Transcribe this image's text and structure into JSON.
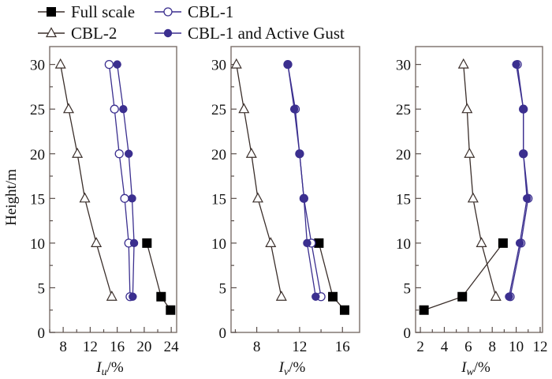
{
  "chart_data": [
    {
      "type": "line",
      "panel": "Iu",
      "xlabel_main": "I",
      "xlabel_sub": "u",
      "xlabel_suffix": "/%",
      "ylabel": "Height/m",
      "xlim": [
        6,
        24.8
      ],
      "ylim": [
        0,
        32
      ],
      "xticks": [
        8,
        12,
        16,
        20,
        24
      ],
      "xminor": 2,
      "yticks": [
        0,
        5,
        10,
        15,
        20,
        25,
        30
      ],
      "yminor": 2.5,
      "series": [
        {
          "name": "Full scale",
          "marker": "square-filled",
          "color": "#000000",
          "line": "#3a2e2a",
          "points": [
            [
              20.4,
              10
            ],
            [
              22.5,
              4
            ],
            [
              23.9,
              2.5
            ]
          ]
        },
        {
          "name": "CBL-2",
          "marker": "triangle-open",
          "color": "#3a2e2a",
          "line": "#3a2e2a",
          "points": [
            [
              7.6,
              30
            ],
            [
              8.8,
              25
            ],
            [
              10.1,
              20
            ],
            [
              11.2,
              15
            ],
            [
              12.9,
              10
            ],
            [
              15.2,
              4
            ]
          ]
        },
        {
          "name": "CBL-1",
          "marker": "circle-open",
          "color": "#3b2f8f",
          "line": "#3b2f8f",
          "points": [
            [
              14.8,
              30
            ],
            [
              15.6,
              25
            ],
            [
              16.3,
              20
            ],
            [
              17.1,
              15
            ],
            [
              17.7,
              10
            ],
            [
              17.9,
              4
            ]
          ]
        },
        {
          "name": "CBL-1 and Active Gust",
          "marker": "circle-filled",
          "color": "#3b2f8f",
          "line": "#3b2f8f",
          "points": [
            [
              16.0,
              30
            ],
            [
              16.9,
              25
            ],
            [
              17.7,
              20
            ],
            [
              18.2,
              15
            ],
            [
              18.5,
              10
            ],
            [
              18.3,
              4
            ]
          ]
        }
      ]
    },
    {
      "type": "line",
      "panel": "Iv",
      "xlabel_main": "I",
      "xlabel_sub": "v",
      "xlabel_suffix": "/%",
      "ylabel": "",
      "xlim": [
        5.6,
        17.6
      ],
      "ylim": [
        0,
        32
      ],
      "xticks": [
        8,
        12,
        16
      ],
      "xminor": 2,
      "yticks": [
        0,
        5,
        10,
        15,
        20,
        25,
        30
      ],
      "yminor": 2.5,
      "series": [
        {
          "name": "Full scale",
          "marker": "square-filled",
          "color": "#000000",
          "line": "#3a2e2a",
          "points": [
            [
              13.8,
              10
            ],
            [
              15.1,
              4
            ],
            [
              16.2,
              2.5
            ]
          ]
        },
        {
          "name": "CBL-2",
          "marker": "triangle-open",
          "color": "#3a2e2a",
          "line": "#3a2e2a",
          "points": [
            [
              6.1,
              30
            ],
            [
              6.8,
              25
            ],
            [
              7.5,
              20
            ],
            [
              8.1,
              15
            ],
            [
              9.3,
              10
            ],
            [
              10.3,
              4
            ]
          ]
        },
        {
          "name": "CBL-1",
          "marker": "circle-open",
          "color": "#3b2f8f",
          "line": "#3b2f8f",
          "points": [
            [
              10.9,
              30
            ],
            [
              11.6,
              25
            ],
            [
              12.0,
              20
            ],
            [
              12.4,
              15
            ],
            [
              13.1,
              10
            ],
            [
              14.0,
              4
            ]
          ]
        },
        {
          "name": "CBL-1 and Active Gust",
          "marker": "circle-filled",
          "color": "#3b2f8f",
          "line": "#3b2f8f",
          "points": [
            [
              10.9,
              30
            ],
            [
              11.5,
              25
            ],
            [
              12.0,
              20
            ],
            [
              12.4,
              15
            ],
            [
              12.7,
              10
            ],
            [
              13.5,
              4
            ]
          ]
        }
      ]
    },
    {
      "type": "line",
      "panel": "Iw",
      "xlabel_main": "I",
      "xlabel_sub": "w",
      "xlabel_suffix": "/%",
      "ylabel": "",
      "xlim": [
        1.6,
        12.2
      ],
      "ylim": [
        0,
        32
      ],
      "xticks": [
        2,
        4,
        6,
        8,
        10,
        12
      ],
      "xminor": 1,
      "yticks": [
        0,
        5,
        10,
        15,
        20,
        25,
        30
      ],
      "yminor": 2.5,
      "series": [
        {
          "name": "Full scale",
          "marker": "square-filled",
          "color": "#000000",
          "line": "#3a2e2a",
          "points": [
            [
              8.9,
              10
            ],
            [
              5.5,
              4
            ],
            [
              2.3,
              2.5
            ]
          ]
        },
        {
          "name": "CBL-2",
          "marker": "triangle-open",
          "color": "#3a2e2a",
          "line": "#3a2e2a",
          "points": [
            [
              5.6,
              30
            ],
            [
              5.9,
              25
            ],
            [
              6.1,
              20
            ],
            [
              6.4,
              15
            ],
            [
              7.1,
              10
            ],
            [
              8.3,
              4
            ]
          ]
        },
        {
          "name": "CBL-1",
          "marker": "circle-open",
          "color": "#3b2f8f",
          "line": "#3b2f8f",
          "points": [
            [
              10.1,
              30
            ],
            [
              10.6,
              25
            ],
            [
              10.6,
              20
            ],
            [
              11.0,
              15
            ],
            [
              10.4,
              10
            ],
            [
              9.5,
              4
            ]
          ]
        },
        {
          "name": "CBL-1 and Active Gust",
          "marker": "circle-filled",
          "color": "#3b2f8f",
          "line": "#3b2f8f",
          "points": [
            [
              10.0,
              30
            ],
            [
              10.6,
              25
            ],
            [
              10.6,
              20
            ],
            [
              10.9,
              15
            ],
            [
              10.3,
              10
            ],
            [
              9.4,
              4
            ]
          ]
        }
      ]
    }
  ],
  "legend": {
    "placement": "top",
    "entries": [
      {
        "label": "Full scale",
        "marker": "square-filled",
        "color": "#000000",
        "line": "#3a2e2a"
      },
      {
        "label": "CBL-1",
        "marker": "circle-open",
        "color": "#3b2f8f",
        "line": "#3b2f8f"
      },
      {
        "label": "CBL-2",
        "marker": "triangle-open",
        "color": "#3a2e2a",
        "line": "#3a2e2a"
      },
      {
        "label": "CBL-1 and Active Gust",
        "marker": "circle-filled",
        "color": "#3b2f8f",
        "line": "#3b2f8f"
      }
    ]
  },
  "colors": {
    "frame": "#7a6e6a",
    "blue": "#3b2f8f",
    "dark": "#3a2e2a"
  }
}
